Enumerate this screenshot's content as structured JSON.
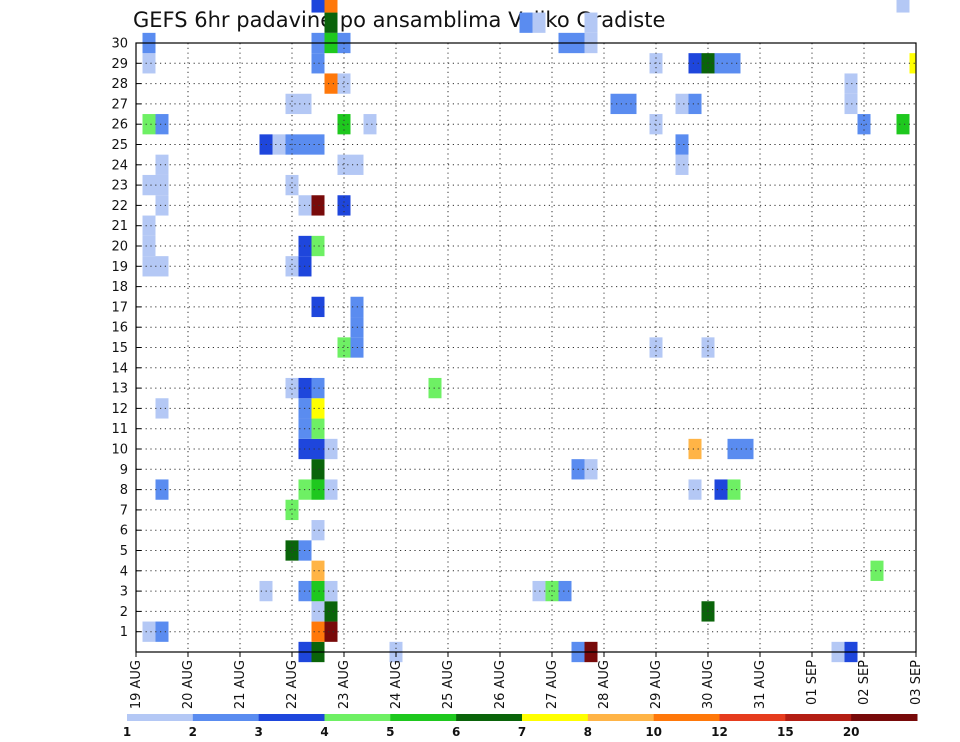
{
  "chart_data": {
    "type": "heatmap",
    "title": "GEFS 6hr padavine po ansamblima Veliko Gradiste",
    "x_tick_labels": [
      "19 AUG",
      "20 AUG",
      "21 AUG",
      "22 AUG",
      "23 AUG",
      "24 AUG",
      "25 AUG",
      "26 AUG",
      "27 AUG",
      "28 AUG",
      "29 AUG",
      "30 AUG",
      "31 AUG",
      "01 SEP",
      "02 SEP",
      "03 SEP"
    ],
    "y_tick_labels": [
      "1",
      "2",
      "3",
      "4",
      "5",
      "6",
      "7",
      "8",
      "9",
      "10",
      "11",
      "12",
      "13",
      "14",
      "15",
      "16",
      "17",
      "18",
      "19",
      "20",
      "21",
      "22",
      "23",
      "24",
      "25",
      "26",
      "27",
      "28",
      "29",
      "30"
    ],
    "xlim_steps": [
      0,
      60
    ],
    "ylim_members": [
      0,
      30
    ],
    "grid": true,
    "legend_position": "bottom",
    "legend": {
      "labels": [
        "1",
        "2",
        "3",
        "4",
        "5",
        "6",
        "7",
        "8",
        "10",
        "12",
        "15",
        "20"
      ],
      "colors": [
        "#b4c8f5",
        "#5a8cf0",
        "#1e46dc",
        "#6ef064",
        "#1ec81e",
        "#0a640a",
        "#ffff00",
        "#ffb446",
        "#ff780a",
        "#e63c1e",
        "#b41e14",
        "#780a0a"
      ]
    },
    "cell_value_note": "",
    "cells": [
      {
        "m": 0,
        "s": 13,
        "c": 2
      },
      {
        "m": 0,
        "s": 14,
        "c": 5
      },
      {
        "m": 0,
        "s": 20,
        "c": 0
      },
      {
        "m": 0,
        "s": 34,
        "c": 1
      },
      {
        "m": 0,
        "s": 35,
        "c": 11
      },
      {
        "m": 0,
        "s": 54,
        "c": 0
      },
      {
        "m": 0,
        "s": 55,
        "c": 2
      },
      {
        "m": 1,
        "s": 1,
        "c": 0
      },
      {
        "m": 1,
        "s": 2,
        "c": 1
      },
      {
        "m": 1,
        "s": 14,
        "c": 8
      },
      {
        "m": 1,
        "s": 15,
        "c": 11
      },
      {
        "m": 2,
        "s": 14,
        "c": 0
      },
      {
        "m": 2,
        "s": 15,
        "c": 5
      },
      {
        "m": 2,
        "s": 44,
        "c": 5
      },
      {
        "m": 3,
        "s": 10,
        "c": 0
      },
      {
        "m": 3,
        "s": 13,
        "c": 1
      },
      {
        "m": 3,
        "s": 14,
        "c": 4
      },
      {
        "m": 3,
        "s": 15,
        "c": 0
      },
      {
        "m": 3,
        "s": 31,
        "c": 0
      },
      {
        "m": 3,
        "s": 32,
        "c": 3
      },
      {
        "m": 3,
        "s": 33,
        "c": 1
      },
      {
        "m": 4,
        "s": 14,
        "c": 7
      },
      {
        "m": 4,
        "s": 57,
        "c": 3
      },
      {
        "m": 5,
        "s": 12,
        "c": 5
      },
      {
        "m": 5,
        "s": 13,
        "c": 1
      },
      {
        "m": 6,
        "s": 14,
        "c": 0
      },
      {
        "m": 7,
        "s": 12,
        "c": 3
      },
      {
        "m": 8,
        "s": 2,
        "c": 1
      },
      {
        "m": 8,
        "s": 13,
        "c": 3
      },
      {
        "m": 8,
        "s": 14,
        "c": 4
      },
      {
        "m": 8,
        "s": 15,
        "c": 0
      },
      {
        "m": 8,
        "s": 43,
        "c": 0
      },
      {
        "m": 8,
        "s": 45,
        "c": 2
      },
      {
        "m": 8,
        "s": 46,
        "c": 3
      },
      {
        "m": 9,
        "s": 14,
        "c": 5
      },
      {
        "m": 9,
        "s": 34,
        "c": 1
      },
      {
        "m": 9,
        "s": 35,
        "c": 0
      },
      {
        "m": 10,
        "s": 13,
        "c": 2
      },
      {
        "m": 10,
        "s": 14,
        "c": 2
      },
      {
        "m": 10,
        "s": 15,
        "c": 0
      },
      {
        "m": 10,
        "s": 43,
        "c": 7
      },
      {
        "m": 10,
        "s": 46,
        "c": 1
      },
      {
        "m": 10,
        "s": 47,
        "c": 1
      },
      {
        "m": 11,
        "s": 13,
        "c": 1
      },
      {
        "m": 11,
        "s": 14,
        "c": 3
      },
      {
        "m": 12,
        "s": 2,
        "c": 0
      },
      {
        "m": 12,
        "s": 13,
        "c": 1
      },
      {
        "m": 12,
        "s": 14,
        "c": 6
      },
      {
        "m": 13,
        "s": 12,
        "c": 0
      },
      {
        "m": 13,
        "s": 13,
        "c": 2
      },
      {
        "m": 13,
        "s": 14,
        "c": 1
      },
      {
        "m": 13,
        "s": 23,
        "c": 3
      },
      {
        "m": 15,
        "s": 16,
        "c": 3
      },
      {
        "m": 15,
        "s": 17,
        "c": 1
      },
      {
        "m": 15,
        "s": 40,
        "c": 0
      },
      {
        "m": 15,
        "s": 44,
        "c": 0
      },
      {
        "m": 16,
        "s": 17,
        "c": 1
      },
      {
        "m": 17,
        "s": 14,
        "c": 2
      },
      {
        "m": 17,
        "s": 17,
        "c": 1
      },
      {
        "m": 19,
        "s": 1,
        "c": 0
      },
      {
        "m": 19,
        "s": 2,
        "c": 0
      },
      {
        "m": 19,
        "s": 12,
        "c": 0
      },
      {
        "m": 19,
        "s": 13,
        "c": 2
      },
      {
        "m": 20,
        "s": 1,
        "c": 0
      },
      {
        "m": 20,
        "s": 13,
        "c": 2
      },
      {
        "m": 20,
        "s": 14,
        "c": 3
      },
      {
        "m": 21,
        "s": 1,
        "c": 0
      },
      {
        "m": 22,
        "s": 2,
        "c": 0
      },
      {
        "m": 22,
        "s": 13,
        "c": 0
      },
      {
        "m": 22,
        "s": 14,
        "c": 11
      },
      {
        "m": 22,
        "s": 16,
        "c": 2
      },
      {
        "m": 23,
        "s": 1,
        "c": 0
      },
      {
        "m": 23,
        "s": 2,
        "c": 0
      },
      {
        "m": 23,
        "s": 12,
        "c": 0
      },
      {
        "m": 24,
        "s": 2,
        "c": 0
      },
      {
        "m": 24,
        "s": 16,
        "c": 0
      },
      {
        "m": 24,
        "s": 17,
        "c": 0
      },
      {
        "m": 24,
        "s": 42,
        "c": 0
      },
      {
        "m": 25,
        "s": 10,
        "c": 2
      },
      {
        "m": 25,
        "s": 11,
        "c": 0
      },
      {
        "m": 25,
        "s": 12,
        "c": 1
      },
      {
        "m": 25,
        "s": 13,
        "c": 1
      },
      {
        "m": 25,
        "s": 14,
        "c": 1
      },
      {
        "m": 25,
        "s": 42,
        "c": 1
      },
      {
        "m": 26,
        "s": 1,
        "c": 3
      },
      {
        "m": 26,
        "s": 2,
        "c": 1
      },
      {
        "m": 26,
        "s": 16,
        "c": 4
      },
      {
        "m": 26,
        "s": 18,
        "c": 0
      },
      {
        "m": 26,
        "s": 40,
        "c": 0
      },
      {
        "m": 26,
        "s": 56,
        "c": 1
      },
      {
        "m": 26,
        "s": 59,
        "c": 4
      },
      {
        "m": 27,
        "s": 12,
        "c": 0
      },
      {
        "m": 27,
        "s": 13,
        "c": 0
      },
      {
        "m": 27,
        "s": 37,
        "c": 1
      },
      {
        "m": 27,
        "s": 38,
        "c": 1
      },
      {
        "m": 27,
        "s": 42,
        "c": 0
      },
      {
        "m": 27,
        "s": 43,
        "c": 1
      },
      {
        "m": 27,
        "s": 55,
        "c": 0
      },
      {
        "m": 28,
        "s": 15,
        "c": 8
      },
      {
        "m": 28,
        "s": 16,
        "c": 0
      },
      {
        "m": 28,
        "s": 55,
        "c": 0
      },
      {
        "m": 29,
        "s": 1,
        "c": 0
      },
      {
        "m": 29,
        "s": 14,
        "c": 1
      },
      {
        "m": 29,
        "s": 40,
        "c": 0
      },
      {
        "m": 29,
        "s": 43,
        "c": 2
      },
      {
        "m": 29,
        "s": 44,
        "c": 5
      },
      {
        "m": 29,
        "s": 45,
        "c": 1
      },
      {
        "m": 29,
        "s": 46,
        "c": 1
      },
      {
        "m": 29,
        "s": 60,
        "c": 6
      },
      {
        "m": 30,
        "s": 1,
        "c": 1
      },
      {
        "m": 30,
        "s": 14,
        "c": 1
      },
      {
        "m": 30,
        "s": 15,
        "c": 4
      },
      {
        "m": 30,
        "s": 16,
        "c": 1
      },
      {
        "m": 30,
        "s": 33,
        "c": 1
      },
      {
        "m": 30,
        "s": 34,
        "c": 1
      },
      {
        "m": 30,
        "s": 35,
        "c": 0
      },
      {
        "m": 31,
        "s": 15,
        "c": 5
      },
      {
        "m": 31,
        "s": 30,
        "c": 1
      },
      {
        "m": 31,
        "s": 31,
        "c": 0
      },
      {
        "m": 31,
        "s": 35,
        "c": 0
      },
      {
        "m": 32,
        "s": 14,
        "c": 2
      },
      {
        "m": 32,
        "s": 15,
        "c": 8
      },
      {
        "m": 32,
        "s": 59,
        "c": 0
      }
    ]
  }
}
